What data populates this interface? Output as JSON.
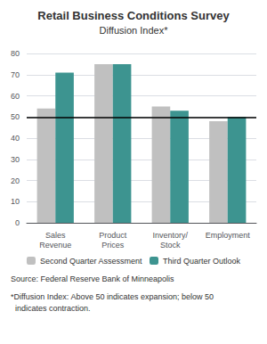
{
  "chart_data": {
    "type": "bar",
    "title": "Retail Business Conditions Survey",
    "subtitle": "Diffusion Index*",
    "categories": [
      "Sales\nRevenue",
      "Product\nPrices",
      "Inventory/\nStock",
      "Employment"
    ],
    "series": [
      {
        "name": "Second Quarter Assessment",
        "color": "#c0c0c0",
        "values": [
          54,
          75,
          55,
          48
        ]
      },
      {
        "name": "Third Quarter Outlook",
        "color": "#3d9490",
        "values": [
          71,
          75,
          53,
          50
        ]
      }
    ],
    "reference_line": 50,
    "ylim": [
      0,
      80
    ],
    "yticks": [
      0,
      10,
      20,
      30,
      40,
      50,
      60,
      70,
      80
    ],
    "grid": true,
    "legend": "bottom",
    "source": "Source: Federal Reserve Bank of Minneapolis",
    "footnote": [
      "*Diffusion Index: Above 50 indicates expansion; below 50",
      "  indicates contraction."
    ]
  }
}
